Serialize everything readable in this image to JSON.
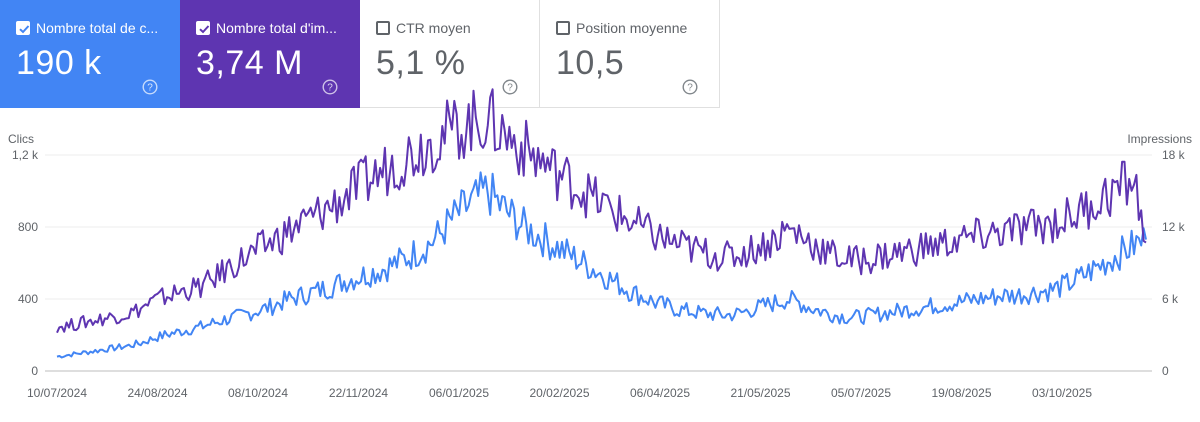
{
  "cards": [
    {
      "label": "Nombre total de c...",
      "value": "190 k",
      "checked": true,
      "color": "#4285f4"
    },
    {
      "label": "Nombre total d'im...",
      "value": "3,74 M",
      "checked": true,
      "color": "#5e35b1"
    },
    {
      "label": "CTR moyen",
      "value": "5,1 %",
      "checked": false
    },
    {
      "label": "Position moyenne",
      "value": "10,5",
      "checked": false
    }
  ],
  "chart_data": {
    "type": "line",
    "title": "",
    "ylabel_left": "Clics",
    "ylabel_right": "Impressions",
    "left_ticks": [
      "0",
      "400",
      "800",
      "1,2 k"
    ],
    "right_ticks": [
      "0",
      "6 k",
      "12 k",
      "18 k"
    ],
    "ylim_left": [
      0,
      1200
    ],
    "ylim_right": [
      0,
      18000
    ],
    "x_ticks": [
      "10/07/2024",
      "24/08/2024",
      "08/10/2024",
      "22/11/2024",
      "06/01/2025",
      "20/02/2025",
      "06/04/2025",
      "21/05/2025",
      "05/07/2025",
      "19/08/2025",
      "03/10/2025"
    ],
    "x_range": [
      "10/07/2024",
      "16/11/2025"
    ],
    "series": [
      {
        "name": "Clics",
        "axis": "left",
        "color": "#4285f4",
        "values": [
          80,
          90,
          100,
          110,
          120,
          130,
          140,
          155,
          180,
          200,
          215,
          230,
          245,
          265,
          285,
          300,
          320,
          340,
          360,
          390,
          410,
          430,
          450,
          470,
          500,
          520,
          540,
          560,
          590,
          620,
          660,
          700,
          760,
          840,
          900,
          950,
          1000,
          920,
          860,
          800,
          760,
          720,
          680,
          640,
          600,
          560,
          520,
          480,
          440,
          410,
          380,
          360,
          340,
          330,
          320,
          315,
          310,
          320,
          340,
          360,
          380,
          400,
          380,
          350,
          330,
          310,
          300,
          300,
          310,
          320,
          330,
          340,
          350,
          360,
          370,
          380,
          390,
          400,
          410,
          420,
          420,
          430,
          440,
          450,
          470,
          500,
          540,
          580,
          620,
          660,
          700,
          730
        ]
      },
      {
        "name": "Impressions",
        "axis": "right",
        "color": "#5e35b1",
        "values": [
          3700,
          3800,
          4000,
          4200,
          4400,
          4600,
          4800,
          5200,
          5800,
          6200,
          6500,
          6800,
          7000,
          7600,
          8400,
          9000,
          9600,
          10200,
          10800,
          11400,
          12000,
          12600,
          13200,
          13800,
          14500,
          15200,
          15900,
          16500,
          17200,
          17800,
          18400,
          19000,
          19600,
          20100,
          20400,
          20800,
          21000,
          20100,
          19300,
          18500,
          17800,
          17100,
          16400,
          15700,
          15000,
          14300,
          13600,
          13000,
          12400,
          11800,
          11300,
          10900,
          10500,
          10200,
          9900,
          9700,
          9500,
          9700,
          10100,
          10500,
          11000,
          11800,
          11400,
          10700,
          10100,
          9600,
          9300,
          9200,
          9400,
          9600,
          9800,
          10000,
          10200,
          10400,
          10600,
          10800,
          11000,
          11200,
          11400,
          11600,
          11700,
          11900,
          12100,
          12300,
          12600,
          13000,
          13600,
          14200,
          14800,
          15400,
          16000,
          10700
        ]
      }
    ]
  }
}
